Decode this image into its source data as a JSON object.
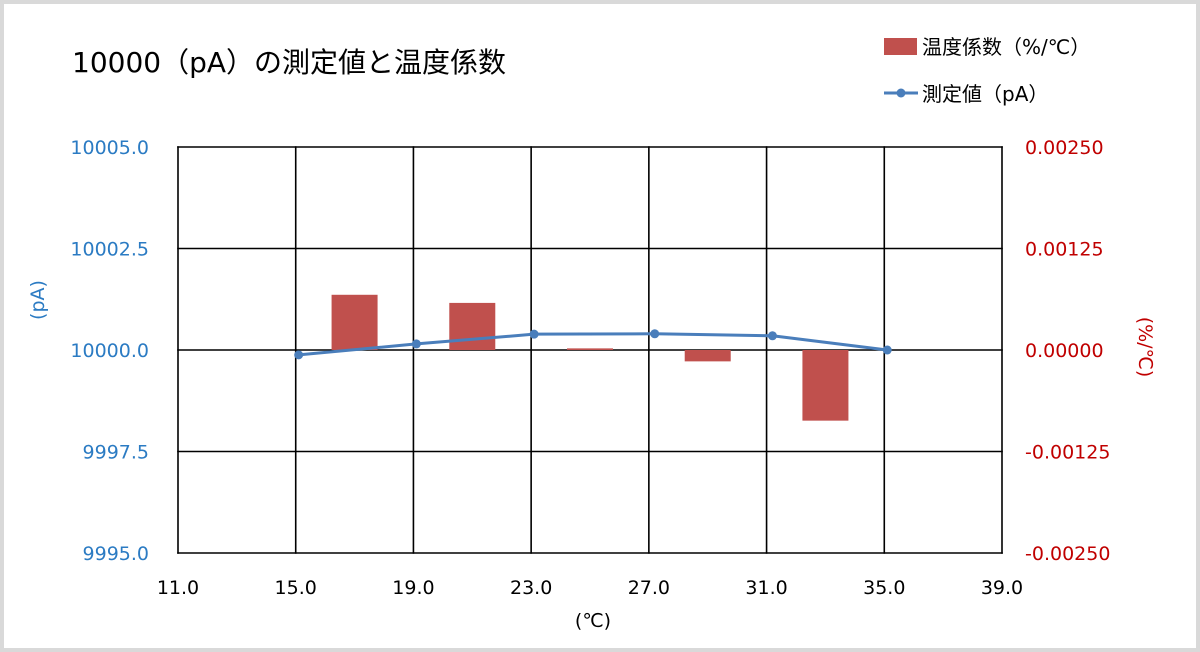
{
  "chart_data": {
    "type": "line",
    "title": "10000（pA）の測定値と温度係数",
    "xlabel": "(℃)",
    "ylabel": "(pA)",
    "ylabel_right": "(%/℃)",
    "xlim": [
      11,
      39
    ],
    "ylim": [
      9995,
      10005
    ],
    "ylim_right": [
      -0.0025,
      0.0025
    ],
    "x_ticks": [
      "11.0",
      "15.0",
      "19.0",
      "23.0",
      "27.0",
      "31.0",
      "35.0",
      "39.0"
    ],
    "y_ticks": [
      "10005.0",
      "10002.5",
      "10000.0",
      "9997.5",
      "9995.0"
    ],
    "y_ticks_right": [
      "0.00250",
      "0.00125",
      "0.00000",
      "-0.00125",
      "-0.00250"
    ],
    "grid": true,
    "legend_position": "top-right",
    "series": [
      {
        "name": "温度係数（%/℃）",
        "type": "bar",
        "axis": "right",
        "color": "#c0504d",
        "x": [
          17,
          21,
          25,
          29,
          33
        ],
        "values": [
          0.00068,
          0.00058,
          2e-05,
          -0.00014,
          -0.00087
        ]
      },
      {
        "name": "測定値（pA）",
        "type": "line",
        "axis": "left",
        "marker": "circle",
        "color": "#4a7ebb",
        "x": [
          15.1,
          19.1,
          23.1,
          27.2,
          31.2,
          35.1
        ],
        "values": [
          9999.88,
          10000.15,
          10000.39,
          10000.4,
          10000.35,
          10000.0
        ]
      }
    ],
    "colors": {
      "left_axis_text": "#2b7bc3",
      "right_axis_text": "#c00000",
      "text": "#000000",
      "gridline": "#000000",
      "frame": "#d9d9d9",
      "background": "#ffffff"
    }
  }
}
